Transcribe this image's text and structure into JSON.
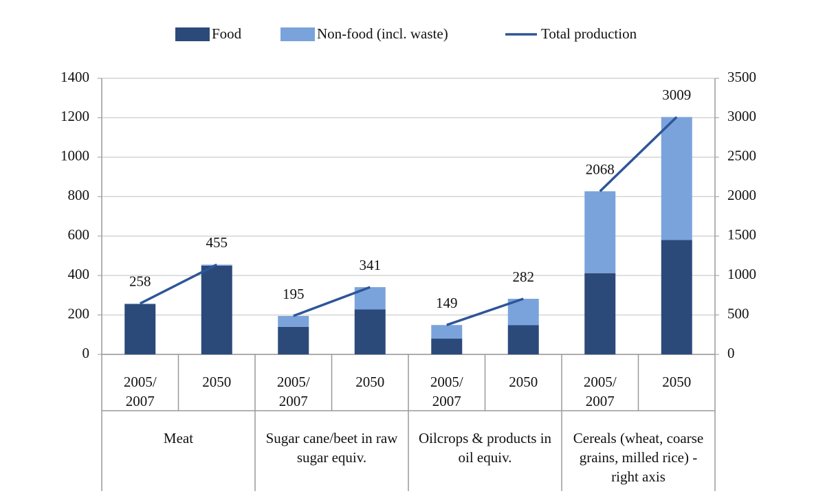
{
  "chart_data": {
    "type": "stacked-bar-line",
    "categories": [
      "2005/\n2007",
      "2050",
      "2005/\n2007",
      "2050",
      "2005/\n2007",
      "2050",
      "2005/\n2007",
      "2050"
    ],
    "groups": [
      "Meat",
      "Sugar cane/beet in raw sugar equiv.",
      "Oilcrops & products in oil equiv.",
      "Cereals (wheat, coarse grains, milled rice) - right axis"
    ],
    "category_axes": [
      "y",
      "y",
      "y",
      "y",
      "y",
      "y",
      "y2",
      "y2"
    ],
    "series": [
      {
        "name": "Food",
        "kind": "bar",
        "color": "#2b4a7a",
        "values": [
          255,
          450,
          140,
          228,
          80,
          148,
          1030,
          1450
        ]
      },
      {
        "name": "Non-food (incl. waste)",
        "kind": "bar",
        "color": "#7ba3db",
        "values": [
          3,
          5,
          55,
          113,
          69,
          134,
          1038,
          1559
        ]
      },
      {
        "name": "Total production",
        "kind": "line",
        "color": "#2e5597",
        "values": [
          258,
          455,
          195,
          341,
          149,
          282,
          2068,
          3009
        ]
      }
    ],
    "ylim": [
      0,
      1400
    ],
    "yticks": [
      0,
      200,
      400,
      600,
      800,
      1000,
      1200,
      1400
    ],
    "y2lim": [
      0,
      3500
    ],
    "y2ticks": [
      0,
      500,
      1000,
      1500,
      2000,
      2500,
      3000,
      3500
    ],
    "grid": true,
    "legend": "top"
  }
}
